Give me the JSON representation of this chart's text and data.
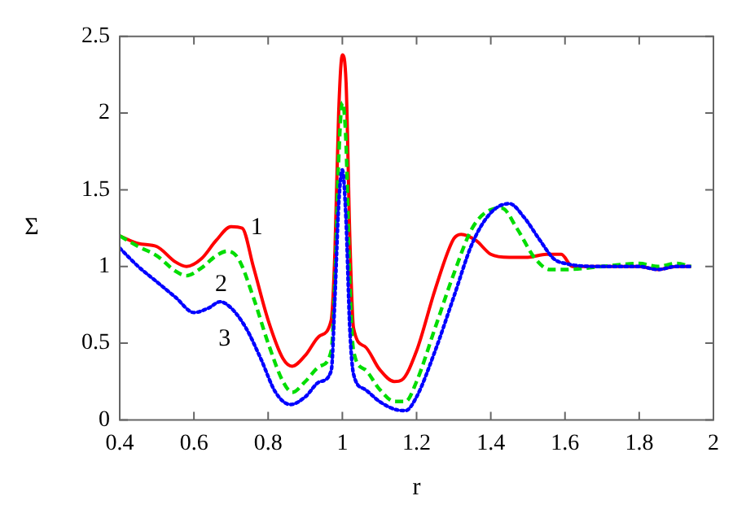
{
  "chart_data": {
    "type": "line",
    "xlabel": "r",
    "ylabel": "Σ",
    "xlim": [
      0.4,
      2
    ],
    "xticks": [
      0.4,
      0.6,
      0.8,
      1,
      1.2,
      1.4,
      1.6,
      1.8,
      2
    ],
    "ylim": [
      0,
      2.5
    ],
    "yticks": [
      0,
      0.5,
      1,
      1.5,
      2,
      2.5
    ],
    "grid": false,
    "legend": false,
    "marker": "none",
    "series": [
      {
        "name": "1",
        "color": "#ff0000",
        "line_style": "solid",
        "x": [
          0.4,
          0.45,
          0.5,
          0.55,
          0.58,
          0.62,
          0.66,
          0.7,
          0.73,
          0.76,
          0.8,
          0.84,
          0.865,
          0.9,
          0.94,
          0.97,
          0.98,
          0.99,
          1.0,
          1.01,
          1.02,
          1.03,
          1.06,
          1.1,
          1.14,
          1.16,
          1.2,
          1.25,
          1.3,
          1.32,
          1.36,
          1.4,
          1.45,
          1.5,
          1.55,
          1.59,
          1.62,
          1.7,
          1.8,
          1.85,
          1.9,
          1.94
        ],
        "values": [
          1.2,
          1.15,
          1.13,
          1.03,
          1.0,
          1.05,
          1.17,
          1.26,
          1.25,
          1.0,
          0.65,
          0.4,
          0.35,
          0.42,
          0.55,
          0.65,
          1.1,
          2.0,
          2.38,
          2.2,
          1.2,
          0.6,
          0.48,
          0.33,
          0.25,
          0.26,
          0.45,
          0.85,
          1.18,
          1.21,
          1.17,
          1.08,
          1.06,
          1.06,
          1.08,
          1.08,
          1.0,
          1.0,
          1.0,
          0.98,
          1.0,
          1.0
        ]
      },
      {
        "name": "2",
        "color": "#00dd00",
        "line_style": "dashed",
        "x": [
          0.4,
          0.45,
          0.5,
          0.55,
          0.58,
          0.62,
          0.66,
          0.69,
          0.72,
          0.76,
          0.8,
          0.84,
          0.865,
          0.9,
          0.94,
          0.97,
          0.98,
          0.99,
          1.0,
          1.01,
          1.02,
          1.03,
          1.06,
          1.1,
          1.14,
          1.17,
          1.2,
          1.25,
          1.3,
          1.35,
          1.4,
          1.43,
          1.47,
          1.52,
          1.56,
          1.6,
          1.7,
          1.8,
          1.85,
          1.9,
          1.94
        ],
        "values": [
          1.2,
          1.13,
          1.07,
          0.97,
          0.94,
          0.99,
          1.07,
          1.1,
          1.05,
          0.8,
          0.5,
          0.25,
          0.18,
          0.25,
          0.35,
          0.45,
          0.9,
          1.7,
          2.07,
          1.8,
          0.9,
          0.45,
          0.33,
          0.2,
          0.12,
          0.12,
          0.25,
          0.6,
          0.95,
          1.25,
          1.37,
          1.38,
          1.25,
          1.05,
          0.98,
          0.98,
          1.0,
          1.02,
          1.0,
          1.02,
          1.0
        ]
      },
      {
        "name": "3",
        "color": "#0000ff",
        "line_style": "dotted",
        "x": [
          0.4,
          0.45,
          0.5,
          0.55,
          0.6,
          0.64,
          0.67,
          0.7,
          0.74,
          0.78,
          0.82,
          0.86,
          0.9,
          0.94,
          0.97,
          0.98,
          0.99,
          1.0,
          1.01,
          1.02,
          1.03,
          1.06,
          1.1,
          1.14,
          1.17,
          1.2,
          1.25,
          1.3,
          1.35,
          1.4,
          1.45,
          1.49,
          1.53,
          1.57,
          1.6,
          1.7,
          1.8,
          1.85,
          1.9,
          1.94
        ],
        "values": [
          1.12,
          1.0,
          0.9,
          0.8,
          0.7,
          0.73,
          0.77,
          0.73,
          0.6,
          0.4,
          0.18,
          0.1,
          0.15,
          0.25,
          0.32,
          0.8,
          1.4,
          1.63,
          1.3,
          0.6,
          0.3,
          0.2,
          0.12,
          0.07,
          0.06,
          0.15,
          0.45,
          0.8,
          1.15,
          1.35,
          1.41,
          1.32,
          1.18,
          1.05,
          1.02,
          1.0,
          1.0,
          0.98,
          1.0,
          1.0
        ]
      }
    ]
  }
}
